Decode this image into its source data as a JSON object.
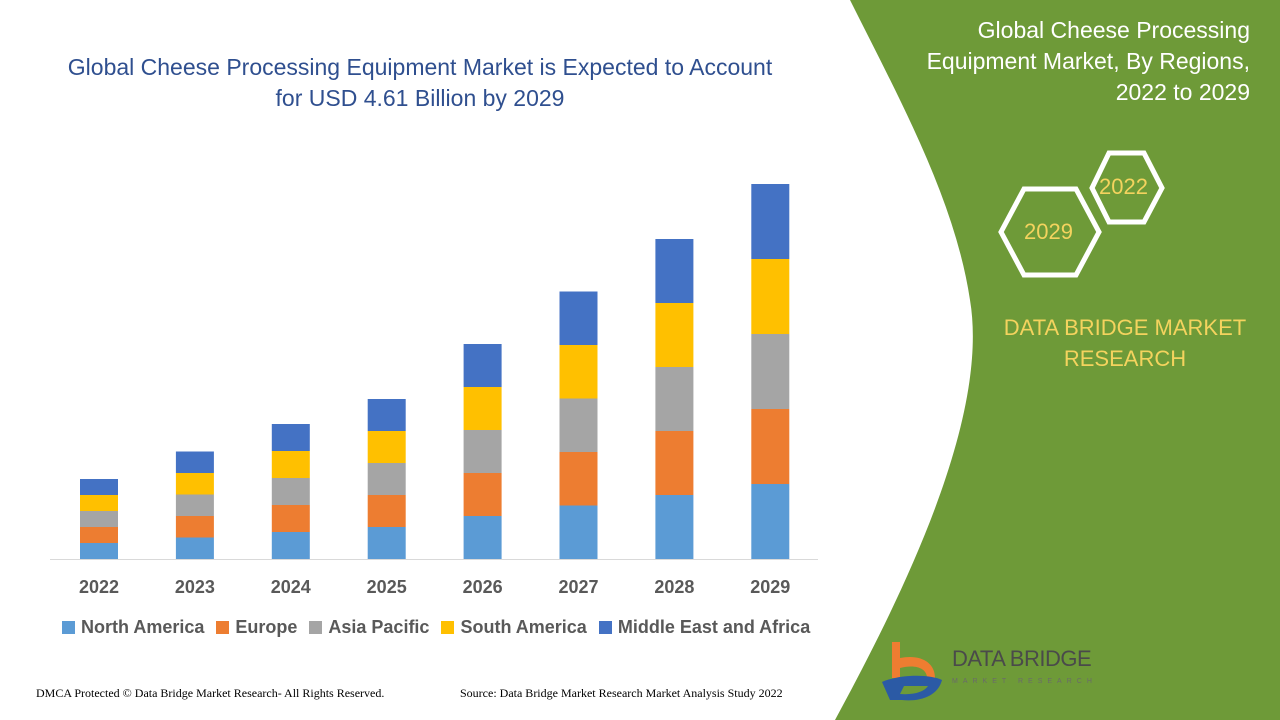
{
  "title": "Global Cheese Processing Equipment Market is Expected to Account for USD 4.61 Billion by 2029",
  "side_panel": {
    "title": "Global Cheese Processing Equipment Market, By Regions, 2022 to 2029",
    "hex_start": "2022",
    "hex_end": "2029",
    "brand": "DATA BRIDGE MARKET RESEARCH",
    "logo_text": "DATA BRIDGE",
    "logo_sub": "MARKET RESEARCH",
    "accent_color": "#6e9a38"
  },
  "footer": {
    "left": "DMCA Protected © Data Bridge Market Research- All Rights Reserved.",
    "right": "Source: Data Bridge Market Research Market Analysis Study 2022"
  },
  "chart_data": {
    "type": "bar",
    "stacked": true,
    "categories": [
      "2022",
      "2023",
      "2024",
      "2025",
      "2026",
      "2027",
      "2028",
      "2029"
    ],
    "series": [
      {
        "name": "North America",
        "color": "#5b9bd5",
        "values": [
          3.2,
          4.3,
          5.4,
          6.4,
          8.6,
          10.7,
          12.8,
          15
        ]
      },
      {
        "name": "Europe",
        "color": "#ed7d31",
        "values": [
          3.2,
          4.3,
          5.4,
          6.4,
          8.6,
          10.7,
          12.8,
          15
        ]
      },
      {
        "name": "Asia Pacific",
        "color": "#a5a5a5",
        "values": [
          3.2,
          4.3,
          5.4,
          6.4,
          8.6,
          10.7,
          12.8,
          15
        ]
      },
      {
        "name": "South America",
        "color": "#ffc000",
        "values": [
          3.2,
          4.3,
          5.4,
          6.4,
          8.6,
          10.7,
          12.8,
          15
        ]
      },
      {
        "name": "Middle East and Africa",
        "color": "#4472c4",
        "values": [
          3.2,
          4.3,
          5.4,
          6.4,
          8.6,
          10.7,
          12.8,
          15
        ]
      }
    ],
    "yaxis_visible": false,
    "grid": false,
    "legend_position": "bottom"
  }
}
